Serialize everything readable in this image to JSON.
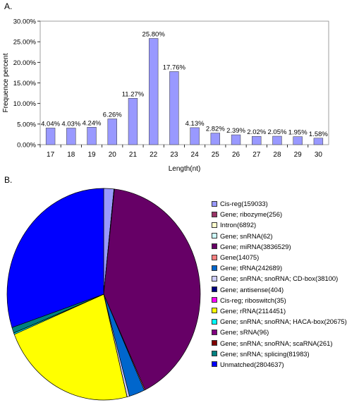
{
  "panel_a_label": "A.",
  "panel_b_label": "B.",
  "chart_data": [
    {
      "type": "bar",
      "ylabel": "Frequence percent",
      "xlabel": "Length(nt)",
      "ylim": [
        0,
        30
      ],
      "yticks": [
        "0.00%",
        "5.00%",
        "10.00%",
        "15.00%",
        "20.00%",
        "25.00%",
        "30.00%"
      ],
      "categories": [
        "17",
        "18",
        "19",
        "20",
        "21",
        "22",
        "23",
        "24",
        "25",
        "26",
        "27",
        "28",
        "29",
        "30"
      ],
      "values": [
        4.04,
        4.03,
        4.24,
        6.26,
        11.27,
        25.8,
        17.76,
        4.13,
        2.82,
        2.39,
        2.02,
        2.05,
        1.95,
        1.58
      ],
      "data_labels": [
        "4.04%",
        "4.03%",
        "4.24%",
        "6.26%",
        "11.27%",
        "25.80%",
        "17.76%",
        "4.13%",
        "2.82%",
        "2.39%",
        "2.02%",
        "2.05%",
        "1.95%",
        "1.58%"
      ],
      "bar_color": "#9999ff",
      "grid": false
    },
    {
      "type": "pie",
      "legend_position": "right",
      "slices": [
        {
          "label": "Cis-reg(159033)",
          "value": 159033,
          "color": "#9999ff"
        },
        {
          "label": "Gene; ribozyme(256)",
          "value": 256,
          "color": "#993366"
        },
        {
          "label": "Intron(6892)",
          "value": 6892,
          "color": "#ffffcc"
        },
        {
          "label": "Gene; snRNA(62)",
          "value": 62,
          "color": "#ccffff"
        },
        {
          "label": "Gene; miRNA(3836529)",
          "value": 3836529,
          "color": "#660066"
        },
        {
          "label": "Gene(14075)",
          "value": 14075,
          "color": "#ff8080"
        },
        {
          "label": "Gene; tRNA(242689)",
          "value": 242689,
          "color": "#0066cc"
        },
        {
          "label": "Gene; snRNA; snoRNA; CD-box(38100)",
          "value": 38100,
          "color": "#ccccff"
        },
        {
          "label": "Gene; antisense(404)",
          "value": 404,
          "color": "#000080"
        },
        {
          "label": "Cis-reg; riboswitch(35)",
          "value": 35,
          "color": "#ff00ff"
        },
        {
          "label": "Gene; rRNA(2114451)",
          "value": 2114451,
          "color": "#ffff00"
        },
        {
          "label": "Gene; snRNA; snoRNA; HACA-box(20675)",
          "value": 20675,
          "color": "#00ffff"
        },
        {
          "label": "Gene; sRNA(96)",
          "value": 96,
          "color": "#800080"
        },
        {
          "label": "Gene; snRNA; snoRNA; scaRNA(261)",
          "value": 261,
          "color": "#800000"
        },
        {
          "label": "Gene; snRNA; splicing(81983)",
          "value": 81983,
          "color": "#008080"
        },
        {
          "label": "Unmatched(2804637)",
          "value": 2804637,
          "color": "#0000ff"
        }
      ]
    }
  ]
}
